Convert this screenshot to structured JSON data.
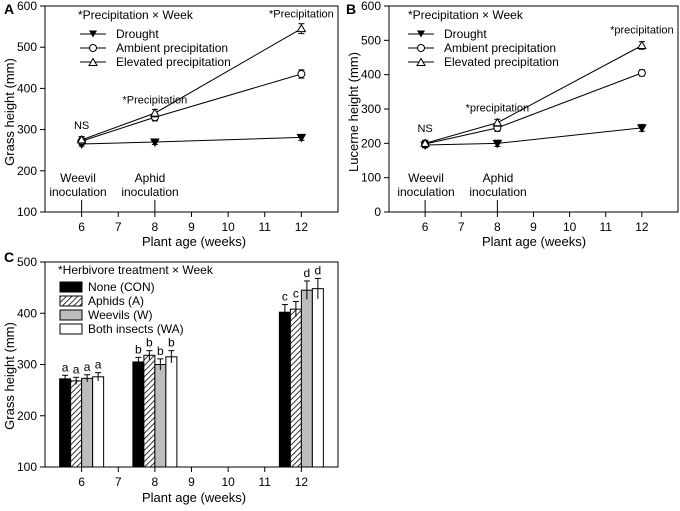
{
  "chart_data": [
    {
      "panel": "A",
      "type": "line",
      "annotation_title": "*Precipitation × Week",
      "xlabel": "Plant age (weeks)",
      "ylabel": "Grass height (mm)",
      "xlim": [
        5,
        13
      ],
      "ylim": [
        100,
        600
      ],
      "x_ticks": [
        "6",
        "7",
        "8",
        "9",
        "10",
        "11",
        "12"
      ],
      "y_ticks": [
        "100",
        "200",
        "300",
        "400",
        "500",
        "600"
      ],
      "x": [
        6,
        8,
        12
      ],
      "series": [
        {
          "name": "Drought",
          "marker": "filled-triangle-down",
          "values": [
            265,
            270,
            281
          ],
          "errors": [
            5,
            6,
            7
          ]
        },
        {
          "name": "Ambient precipitation",
          "marker": "open-circle",
          "values": [
            272,
            330,
            435
          ],
          "errors": [
            8,
            9,
            10
          ]
        },
        {
          "name": "Elevated precipitation",
          "marker": "open-triangle-up",
          "values": [
            275,
            340,
            545
          ],
          "errors": [
            8,
            9,
            12
          ]
        }
      ],
      "annotations": [
        {
          "text": "NS",
          "x": 6,
          "y": 302
        },
        {
          "text": "*Precipitation",
          "x": 8,
          "y": 363
        },
        {
          "text": "*Precipitation",
          "x": 12,
          "y": 572
        }
      ],
      "events": [
        {
          "x": 6,
          "line1": "Weevil",
          "line2": "inoculation"
        },
        {
          "x": 8,
          "line1": "Aphid",
          "line2": "inoculation"
        }
      ],
      "legend_position": "top-left"
    },
    {
      "panel": "B",
      "type": "line",
      "annotation_title": "*Precipitation × Week",
      "xlabel": "Plant age (weeks)",
      "ylabel": "Lucerne height (mm)",
      "xlim": [
        5,
        13
      ],
      "ylim": [
        0,
        600
      ],
      "x_ticks": [
        "6",
        "7",
        "8",
        "9",
        "10",
        "11",
        "12"
      ],
      "y_ticks": [
        "0",
        "100",
        "200",
        "300",
        "400",
        "500",
        "600"
      ],
      "x": [
        6,
        8,
        12
      ],
      "series": [
        {
          "name": "Drought",
          "marker": "filled-triangle-down",
          "values": [
            195,
            200,
            245
          ],
          "errors": [
            8,
            9,
            10
          ]
        },
        {
          "name": "Ambient precipitation",
          "marker": "open-circle",
          "values": [
            198,
            245,
            405
          ],
          "errors": [
            9,
            10,
            9
          ]
        },
        {
          "name": "Elevated precipitation",
          "marker": "open-triangle-up",
          "values": [
            200,
            260,
            485
          ],
          "errors": [
            9,
            10,
            11
          ]
        }
      ],
      "annotations": [
        {
          "text": "NS",
          "x": 6,
          "y": 233
        },
        {
          "text": "*precipitation",
          "x": 8,
          "y": 292
        },
        {
          "text": "*precipitation",
          "x": 12,
          "y": 520
        }
      ],
      "events": [
        {
          "x": 6,
          "line1": "Weevil",
          "line2": "inoculation"
        },
        {
          "x": 8,
          "line1": "Aphid",
          "line2": "inoculation"
        }
      ],
      "legend_position": "top-left"
    },
    {
      "panel": "C",
      "type": "bar",
      "annotation_title": "*Herbivore treatment × Week",
      "xlabel": "Plant age (weeks)",
      "ylabel": "Grass height (mm)",
      "xlim": [
        5,
        13
      ],
      "ylim": [
        100,
        500
      ],
      "x_ticks": [
        "6",
        "7",
        "8",
        "9",
        "10",
        "11",
        "12"
      ],
      "y_ticks": [
        "100",
        "200",
        "300",
        "400",
        "500"
      ],
      "categories": [
        6,
        8,
        12
      ],
      "series": [
        {
          "name": "None (CON)",
          "fill": "black",
          "values": [
            272,
            305,
            402
          ],
          "errors": [
            7,
            9,
            15
          ],
          "letters": [
            "a",
            "b",
            "c"
          ]
        },
        {
          "name": "Aphids (A)",
          "fill": "hatch",
          "values": [
            268,
            318,
            408
          ],
          "errors": [
            7,
            9,
            15
          ],
          "letters": [
            "a",
            "b",
            "c"
          ]
        },
        {
          "name": "Weevils (W)",
          "fill": "grey",
          "values": [
            273,
            300,
            445
          ],
          "errors": [
            7,
            11,
            18
          ],
          "letters": [
            "a",
            "b",
            "d"
          ]
        },
        {
          "name": "Both insects (WA)",
          "fill": "white",
          "values": [
            276,
            315,
            448
          ],
          "errors": [
            8,
            12,
            20
          ],
          "letters": [
            "a",
            "b",
            "d"
          ]
        }
      ],
      "legend_position": "top-left"
    }
  ]
}
